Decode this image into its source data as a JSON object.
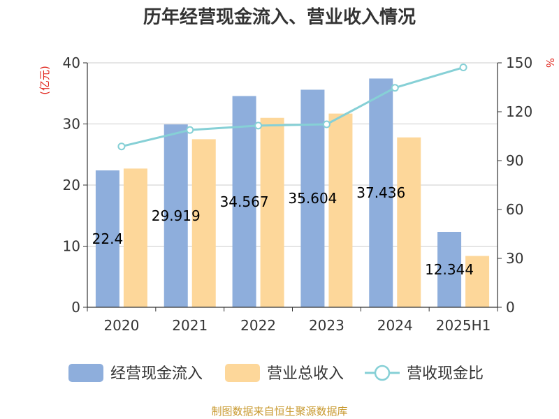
{
  "chart_data": {
    "type": "bar",
    "title": "历年经营现金流入、营业收入情况",
    "categories": [
      "2020",
      "2021",
      "2022",
      "2023",
      "2024",
      "2025H1"
    ],
    "series": [
      {
        "name": "经营现金流入",
        "values": [
          22.4,
          29.919,
          34.567,
          35.604,
          37.436,
          12.344
        ],
        "color": "#8eaedc",
        "labels": [
          "22.4",
          "29.919",
          "34.567",
          "35.604",
          "37.436",
          "12.344"
        ]
      },
      {
        "name": "营业总收入",
        "values": [
          22.7,
          27.5,
          31.0,
          31.7,
          27.8,
          8.4
        ],
        "color": "#fdd79a"
      },
      {
        "name": "营收现金比",
        "type": "line",
        "axis": "right",
        "values": [
          98.7,
          108.8,
          111.5,
          112.3,
          134.7,
          147.2
        ],
        "color": "#86d0d6"
      }
    ],
    "y_left": {
      "label": "(亿元)",
      "min": 0,
      "max": 40,
      "ticks": [
        "0",
        "10",
        "20",
        "30",
        "40"
      ]
    },
    "y_right": {
      "label": "%",
      "min": 0,
      "max": 150,
      "ticks": [
        "0",
        "30",
        "60",
        "90",
        "120",
        "150"
      ]
    },
    "grid": true,
    "legend_position": "bottom",
    "source": "制图数据来自恒生聚源数据库"
  }
}
